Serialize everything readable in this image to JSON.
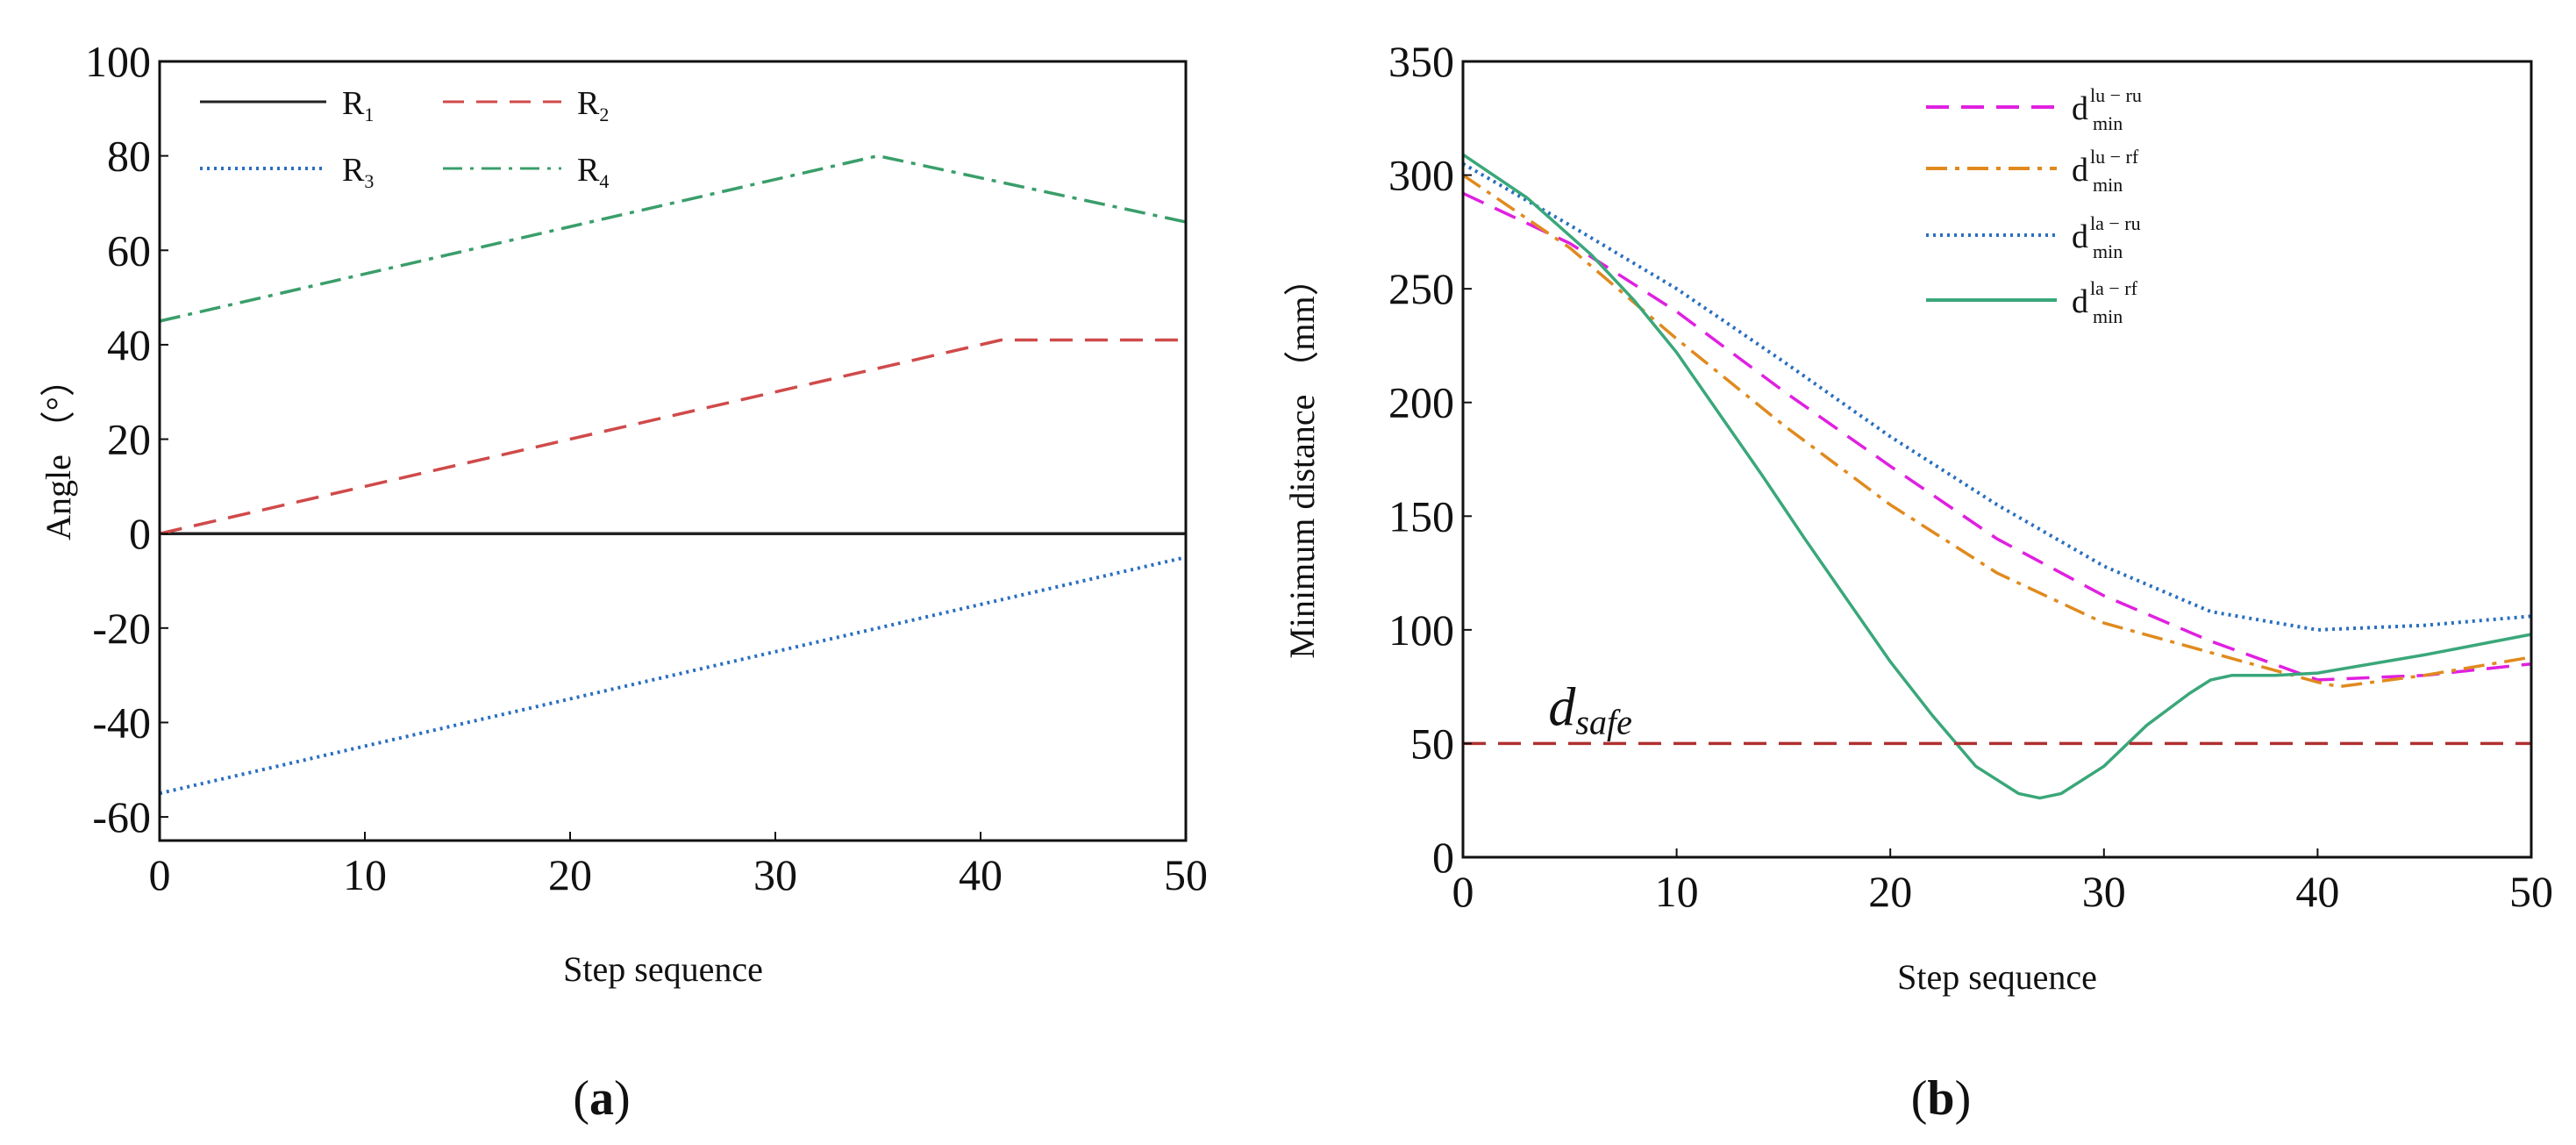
{
  "chart_data": [
    {
      "type": "line",
      "panel_label": {
        "open": "(",
        "letter": "a",
        "close": ")"
      },
      "xlabel": "Step sequence",
      "ylabel": "Angle （°）",
      "xlim": [
        0,
        50
      ],
      "ylim": [
        -65,
        100
      ],
      "xticks": [
        "0",
        "10",
        "20",
        "30",
        "40",
        "50"
      ],
      "yticks": [
        "100",
        "80",
        "60",
        "40",
        "20",
        "0",
        "-20",
        "-40",
        "-60"
      ],
      "legend_position": "top-left",
      "series": [
        {
          "name": "R",
          "sub": "1",
          "color": "#222222",
          "dash": "solid",
          "x": [
            0,
            50
          ],
          "y": [
            0,
            0
          ]
        },
        {
          "name": "R",
          "sub": "2",
          "color": "#d04a4a",
          "dash": "dashed",
          "x": [
            0,
            41,
            50
          ],
          "y": [
            0,
            41,
            41
          ]
        },
        {
          "name": "R",
          "sub": "3",
          "color": "#2a6fc0",
          "dash": "dotted",
          "x": [
            0,
            50
          ],
          "y": [
            -55,
            -5
          ]
        },
        {
          "name": "R",
          "sub": "4",
          "color": "#3a9e6a",
          "dash": "dashdot",
          "x": [
            0,
            35,
            50
          ],
          "y": [
            45,
            80,
            66
          ]
        }
      ]
    },
    {
      "type": "line",
      "panel_label": {
        "open": "(",
        "letter": "b",
        "close": ")"
      },
      "xlabel": "Step sequence",
      "ylabel": "Minimum distance （mm）",
      "xlim": [
        0,
        50
      ],
      "ylim": [
        0,
        350
      ],
      "xticks": [
        "0",
        "10",
        "20",
        "30",
        "40",
        "50"
      ],
      "yticks": [
        "350",
        "300",
        "250",
        "200",
        "150",
        "100",
        "50",
        "0"
      ],
      "legend_position": "top-right",
      "annotation": {
        "main": "d",
        "sub": "safe",
        "x": 4,
        "y": 58
      },
      "series": [
        {
          "name": "d",
          "sub": "min",
          "sup": "lu − ru",
          "color": "#e020e0",
          "dash": "dashed",
          "x": [
            0,
            5,
            10,
            15,
            20,
            25,
            30,
            35,
            40,
            45,
            50
          ],
          "y": [
            292,
            270,
            240,
            205,
            172,
            140,
            115,
            95,
            78,
            80,
            85
          ]
        },
        {
          "name": "d",
          "sub": "min",
          "sup": "lu − rf",
          "color": "#e08a1e",
          "dash": "dashdot",
          "x": [
            0,
            5,
            10,
            15,
            20,
            25,
            30,
            35,
            40,
            41,
            45,
            50
          ],
          "y": [
            300,
            268,
            228,
            190,
            155,
            125,
            103,
            90,
            77,
            75,
            80,
            88
          ]
        },
        {
          "name": "d",
          "sub": "min",
          "sup": "la − ru",
          "color": "#2a6fc0",
          "dash": "dotted",
          "x": [
            0,
            5,
            10,
            15,
            20,
            25,
            30,
            35,
            40,
            45,
            50
          ],
          "y": [
            305,
            278,
            250,
            218,
            185,
            155,
            128,
            108,
            100,
            102,
            106
          ]
        },
        {
          "name": "d",
          "sub": "min",
          "sup": "la − rf",
          "color": "#3aa77a",
          "dash": "solid",
          "x": [
            0,
            3,
            6,
            8,
            10,
            12,
            14,
            16,
            18,
            20,
            22,
            24,
            26,
            27,
            28,
            30,
            32,
            34,
            35,
            36,
            38,
            40,
            45,
            50
          ],
          "y": [
            309,
            290,
            265,
            245,
            222,
            195,
            168,
            140,
            113,
            86,
            62,
            40,
            28,
            26,
            28,
            40,
            58,
            72,
            78,
            80,
            80,
            81,
            89,
            98
          ]
        },
        {
          "name": "d_safe",
          "color": "#b03030",
          "dash": "dashed",
          "x": [
            0,
            50
          ],
          "y": [
            50,
            50
          ]
        }
      ]
    }
  ]
}
